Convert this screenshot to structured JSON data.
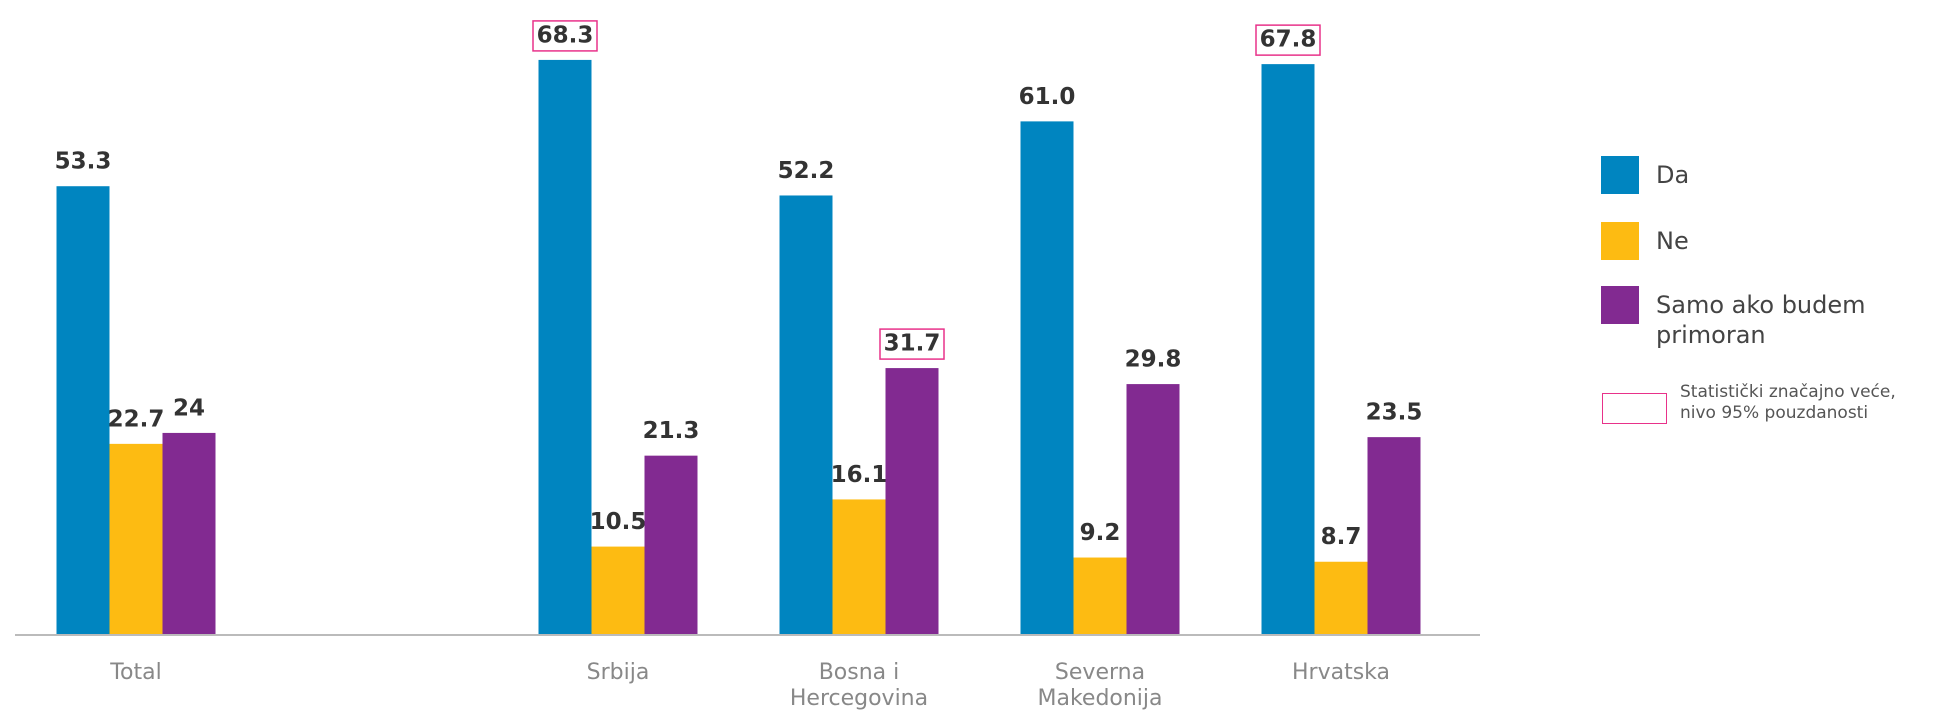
{
  "chart_data": {
    "type": "bar",
    "categories": [
      "Total",
      null,
      "Srbija",
      "Bosna i Hercegovina",
      "Severna Makedonija",
      "Hrvatska"
    ],
    "series": [
      {
        "name": "Da",
        "color": "#0085c0",
        "values": [
          53.3,
          null,
          68.3,
          52.2,
          61.0,
          67.8
        ],
        "value_labels": [
          "53.3",
          null,
          "68.3",
          "52.2",
          "61.0",
          "67.8"
        ],
        "significant": [
          false,
          null,
          true,
          false,
          false,
          true
        ]
      },
      {
        "name": "Ne",
        "color": "#fdbb12",
        "values": [
          22.7,
          null,
          10.5,
          16.1,
          9.2,
          8.7
        ],
        "value_labels": [
          "22.7",
          null,
          "10.5",
          "16.1",
          "9.2",
          "8.7"
        ],
        "significant": [
          false,
          null,
          false,
          false,
          false,
          false
        ]
      },
      {
        "name": "Samo ako budem primoran",
        "color": "#822a91",
        "values": [
          24,
          null,
          21.3,
          31.7,
          29.8,
          23.5
        ],
        "value_labels": [
          "24",
          null,
          "21.3",
          "31.7",
          "29.8",
          "23.5"
        ],
        "significant": [
          false,
          null,
          false,
          true,
          false,
          false
        ]
      }
    ],
    "ylim": [
      0,
      75
    ],
    "note": "Statistički značajno veće, nivo 95% pouzdanosti",
    "significance_color": "#e8328a"
  }
}
